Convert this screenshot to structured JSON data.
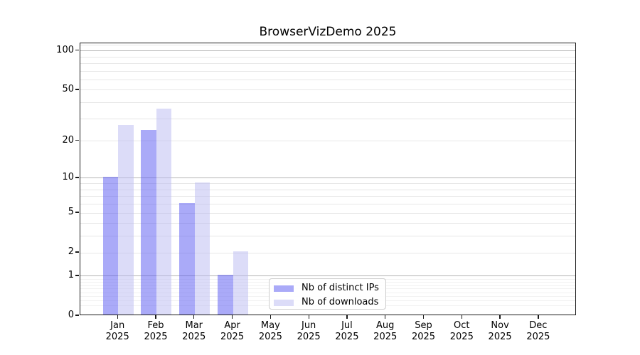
{
  "title": "BrowserVizDemo 2025",
  "colors": {
    "ips_fill": "rgba(85,85,242,0.5)",
    "downloads_fill": "rgba(185,185,242,0.5)",
    "ips_legend": "#aaaaf8",
    "downloads_legend": "#dcdcf8",
    "grid_major": "#b4b4b4",
    "grid_minor": "#e7e7e7",
    "spine": "#1a1a1a"
  },
  "legend": {
    "items": [
      {
        "label": "Nb of distinct IPs",
        "color": "#aaaaf8",
        "series": "ips"
      },
      {
        "label": "Nb of downloads",
        "color": "#dcdcf8",
        "series": "downloads"
      }
    ]
  },
  "chart_data": {
    "type": "bar",
    "title": "BrowserVizDemo 2025",
    "categories": [
      "Jan 2025",
      "Feb 2025",
      "Mar 2025",
      "Apr 2025",
      "May 2025",
      "Jun 2025",
      "Jul 2025",
      "Aug 2025",
      "Sep 2025",
      "Oct 2025",
      "Nov 2025",
      "Dec 2025"
    ],
    "series": [
      {
        "name": "Nb of distinct IPs",
        "values": [
          10,
          24,
          6,
          1,
          0,
          0,
          0,
          0,
          0,
          0,
          0,
          0
        ]
      },
      {
        "name": "Nb of downloads",
        "values": [
          26,
          35,
          9,
          2,
          0,
          0,
          0,
          0,
          0,
          0,
          0,
          0
        ]
      }
    ],
    "xlabel": "",
    "ylabel": "",
    "yscale": "symlog-log1p",
    "yticks": [
      0,
      1,
      2,
      5,
      10,
      20,
      50,
      100
    ],
    "yticks_major_grid": [
      1,
      10,
      100
    ],
    "yticks_minor_grid": [
      2,
      3,
      4,
      5,
      6,
      7,
      8,
      9,
      20,
      30,
      40,
      50,
      60,
      70,
      80,
      90,
      110
    ],
    "yticks_minor_sub1_grid": [
      0.2,
      0.3,
      0.4,
      0.5,
      0.6,
      0.7,
      0.8,
      0.9
    ],
    "ylim": [
      0,
      114
    ],
    "grid": "horizontal",
    "legend_position": "lower center"
  }
}
